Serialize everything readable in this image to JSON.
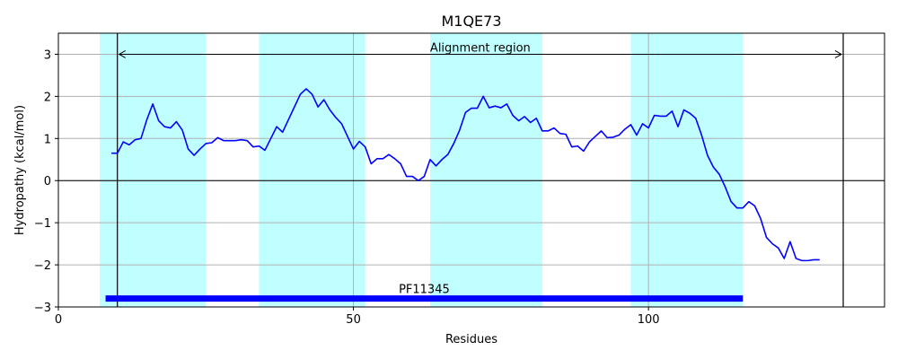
{
  "chart_data": {
    "type": "line",
    "title": "M1QE73",
    "xlabel": "Residues",
    "ylabel": "Hydropathy (kcal/mol)",
    "xlim": [
      0,
      140
    ],
    "ylim": [
      -3,
      3.5
    ],
    "xticks": [
      0,
      50,
      100
    ],
    "yticks": [
      -3,
      -2,
      -1,
      0,
      1,
      2,
      3
    ],
    "grid": true,
    "colors": {
      "line": "#0000ff",
      "band": "#c0ffff",
      "domain_bar": "#0000ff",
      "grid": "#b0b0b0"
    },
    "helices": [
      [
        7,
        25
      ],
      [
        34,
        52
      ],
      [
        63,
        82
      ],
      [
        97,
        116
      ]
    ],
    "alignment_region": {
      "label": "Alignment region",
      "start": 10,
      "end": 133,
      "y": 3
    },
    "domain": {
      "label": "PF11345",
      "start": 8,
      "end": 116,
      "y": -2.8
    },
    "series": [
      {
        "x": [
          9,
          10,
          11,
          12,
          13,
          14,
          15,
          16,
          17,
          18,
          19,
          20,
          21,
          22,
          23,
          24,
          25,
          26,
          27,
          28,
          29,
          30,
          31,
          32,
          33,
          34,
          35,
          36,
          37,
          38,
          39,
          40,
          41,
          42,
          43,
          44,
          45,
          46,
          47,
          48,
          49,
          50,
          51,
          52,
          53,
          54,
          55,
          56,
          57,
          58,
          59,
          60,
          61,
          62,
          63,
          64,
          65,
          66,
          67,
          68,
          69,
          70,
          71,
          72,
          73,
          74,
          75,
          76,
          77,
          78,
          79,
          80,
          81,
          82,
          83,
          84,
          85,
          86,
          87,
          88,
          89,
          90,
          91,
          92,
          93,
          94,
          95,
          96,
          97,
          98,
          99,
          100,
          101,
          102,
          103,
          104,
          105,
          106,
          107,
          108,
          109,
          110,
          111,
          112,
          113,
          114,
          115,
          116,
          117,
          118,
          119,
          120,
          121,
          122,
          123,
          124,
          125,
          126,
          127,
          128,
          129
        ],
        "values": [
          0.65,
          0.65,
          0.92,
          0.85,
          0.97,
          1.0,
          1.45,
          1.82,
          1.42,
          1.28,
          1.25,
          1.4,
          1.2,
          0.75,
          0.6,
          0.75,
          0.88,
          0.9,
          1.02,
          0.95,
          0.95,
          0.95,
          0.97,
          0.95,
          0.8,
          0.82,
          0.72,
          1.0,
          1.28,
          1.15,
          1.45,
          1.75,
          2.05,
          2.18,
          2.05,
          1.75,
          1.92,
          1.68,
          1.5,
          1.35,
          1.05,
          0.75,
          0.93,
          0.8,
          0.4,
          0.52,
          0.52,
          0.62,
          0.52,
          0.4,
          0.1,
          0.1,
          0.0,
          0.1,
          0.5,
          0.35,
          0.5,
          0.62,
          0.88,
          1.2,
          1.62,
          1.72,
          1.72,
          2.0,
          1.73,
          1.77,
          1.73,
          1.82,
          1.55,
          1.42,
          1.52,
          1.38,
          1.48,
          1.18,
          1.18,
          1.25,
          1.12,
          1.1,
          0.8,
          0.82,
          0.7,
          0.92,
          1.05,
          1.18,
          1.02,
          1.03,
          1.08,
          1.22,
          1.33,
          1.08,
          1.35,
          1.25,
          1.55,
          1.53,
          1.53,
          1.65,
          1.28,
          1.68,
          1.6,
          1.48,
          1.08,
          0.6,
          0.32,
          0.15,
          -0.15,
          -0.5,
          -0.65,
          -0.65,
          -0.5,
          -0.6,
          -0.9,
          -1.35,
          -1.5,
          -1.6,
          -1.85,
          -1.45,
          -1.85,
          -1.9,
          -1.9,
          -1.88,
          -1.88
        ]
      }
    ]
  }
}
